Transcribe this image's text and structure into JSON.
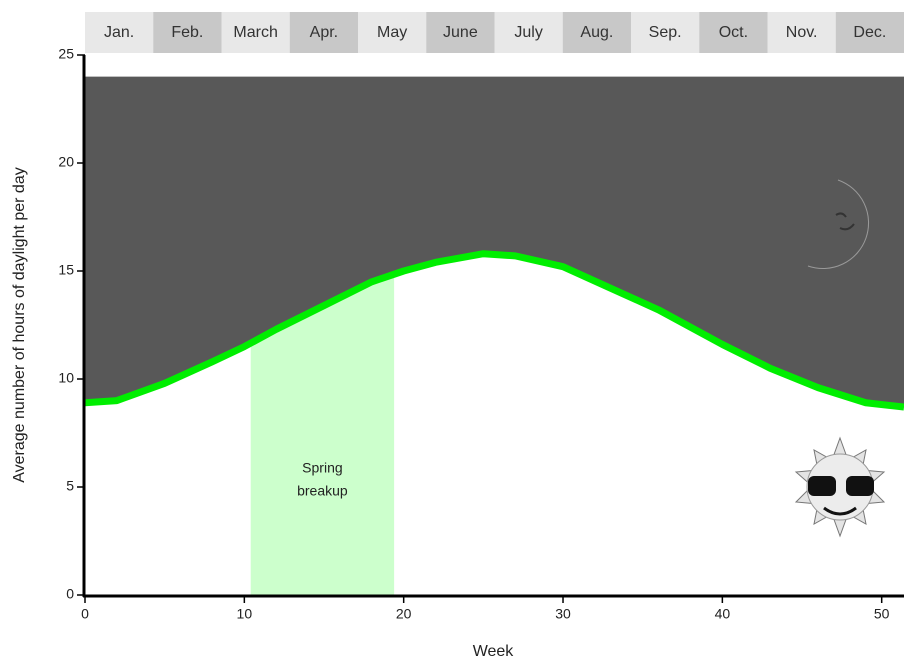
{
  "chart_data": {
    "type": "area",
    "x_label": "Week",
    "y_label": "Average number of hours of daylight per day",
    "x": [
      0,
      2,
      5,
      8,
      10,
      12,
      15,
      18,
      20,
      22,
      25,
      27,
      30,
      33,
      36,
      40,
      43,
      46,
      49,
      51.4
    ],
    "values": [
      8.9,
      9.0,
      9.8,
      10.8,
      11.5,
      12.3,
      13.4,
      14.5,
      15.0,
      15.4,
      15.8,
      15.7,
      15.2,
      14.2,
      13.2,
      11.6,
      10.5,
      9.6,
      8.9,
      8.7
    ],
    "color": "#00ee00",
    "night_color": "#585858",
    "total_hours": 24,
    "months": [
      "Jan.",
      "Feb.",
      "March",
      "Apr.",
      "May",
      "June",
      "July",
      "Aug.",
      "Sep.",
      "Oct.",
      "Nov.",
      "Dec."
    ],
    "annotation": {
      "label_lines": [
        "Spring",
        "breakup"
      ],
      "span": [
        10.4,
        19.4
      ],
      "color": "#ccffcc"
    },
    "xlim": [
      0,
      51.4
    ],
    "xticks": [
      0,
      10,
      20,
      30,
      40,
      50
    ],
    "ylim": [
      0,
      25
    ],
    "yticks": [
      0,
      5,
      10,
      15,
      20,
      25
    ]
  }
}
